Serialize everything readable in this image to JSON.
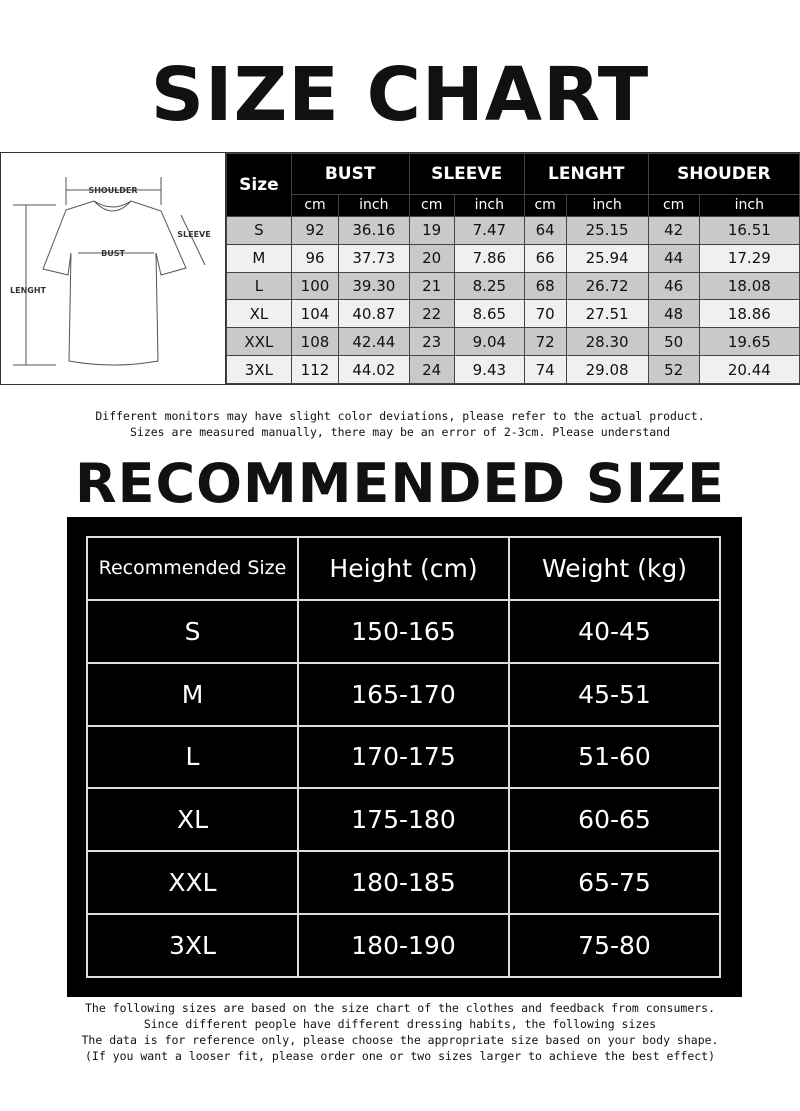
{
  "title": "SIZE CHART",
  "size_chart": {
    "diagram_labels": {
      "shoulder": "SHOULDER",
      "sleeve": "SLEEVE",
      "bust": "BUST",
      "length": "LENGHT"
    },
    "size_header": "Size",
    "groups": [
      "BUST",
      "SLEEVE",
      "LENGHT",
      "SHOUDER"
    ],
    "units": [
      "cm",
      "inch"
    ],
    "rows": [
      [
        "S",
        "92",
        "36.16",
        "19",
        "7.47",
        "64",
        "25.15",
        "42",
        "16.51"
      ],
      [
        "M",
        "96",
        "37.73",
        "20",
        "7.86",
        "66",
        "25.94",
        "44",
        "17.29"
      ],
      [
        "L",
        "100",
        "39.30",
        "21",
        "8.25",
        "68",
        "26.72",
        "46",
        "18.08"
      ],
      [
        "XL",
        "104",
        "40.87",
        "22",
        "8.65",
        "70",
        "27.51",
        "48",
        "18.86"
      ],
      [
        "XXL",
        "108",
        "42.44",
        "23",
        "9.04",
        "72",
        "28.30",
        "50",
        "19.65"
      ],
      [
        "3XL",
        "112",
        "44.02",
        "24",
        "9.43",
        "74",
        "29.08",
        "52",
        "20.44"
      ]
    ]
  },
  "notes1": [
    "Different monitors may have slight color deviations, please refer to the actual product.",
    "Sizes are measured manually, there may be an error of 2-3cm. Please understand"
  ],
  "recommended_title": "RECOMMENDED SIZE",
  "recommended": {
    "headers": [
      "Recommended Size",
      "Height (cm)",
      "Weight (kg)"
    ],
    "rows": [
      [
        "S",
        "150-165",
        "40-45"
      ],
      [
        "M",
        "165-170",
        "45-51"
      ],
      [
        "L",
        "170-175",
        "51-60"
      ],
      [
        "XL",
        "175-180",
        "60-65"
      ],
      [
        "XXL",
        "180-185",
        "65-75"
      ],
      [
        "3XL",
        "180-190",
        "75-80"
      ]
    ]
  },
  "notes2": [
    "The following sizes are based on the size chart of the clothes and feedback from consumers.",
    "Since different people have different dressing habits, the following sizes",
    "The data is for reference only, please choose the appropriate size based on your body shape.",
    "(If you want a looser fit, please order one or two sizes larger to achieve the best effect)"
  ]
}
